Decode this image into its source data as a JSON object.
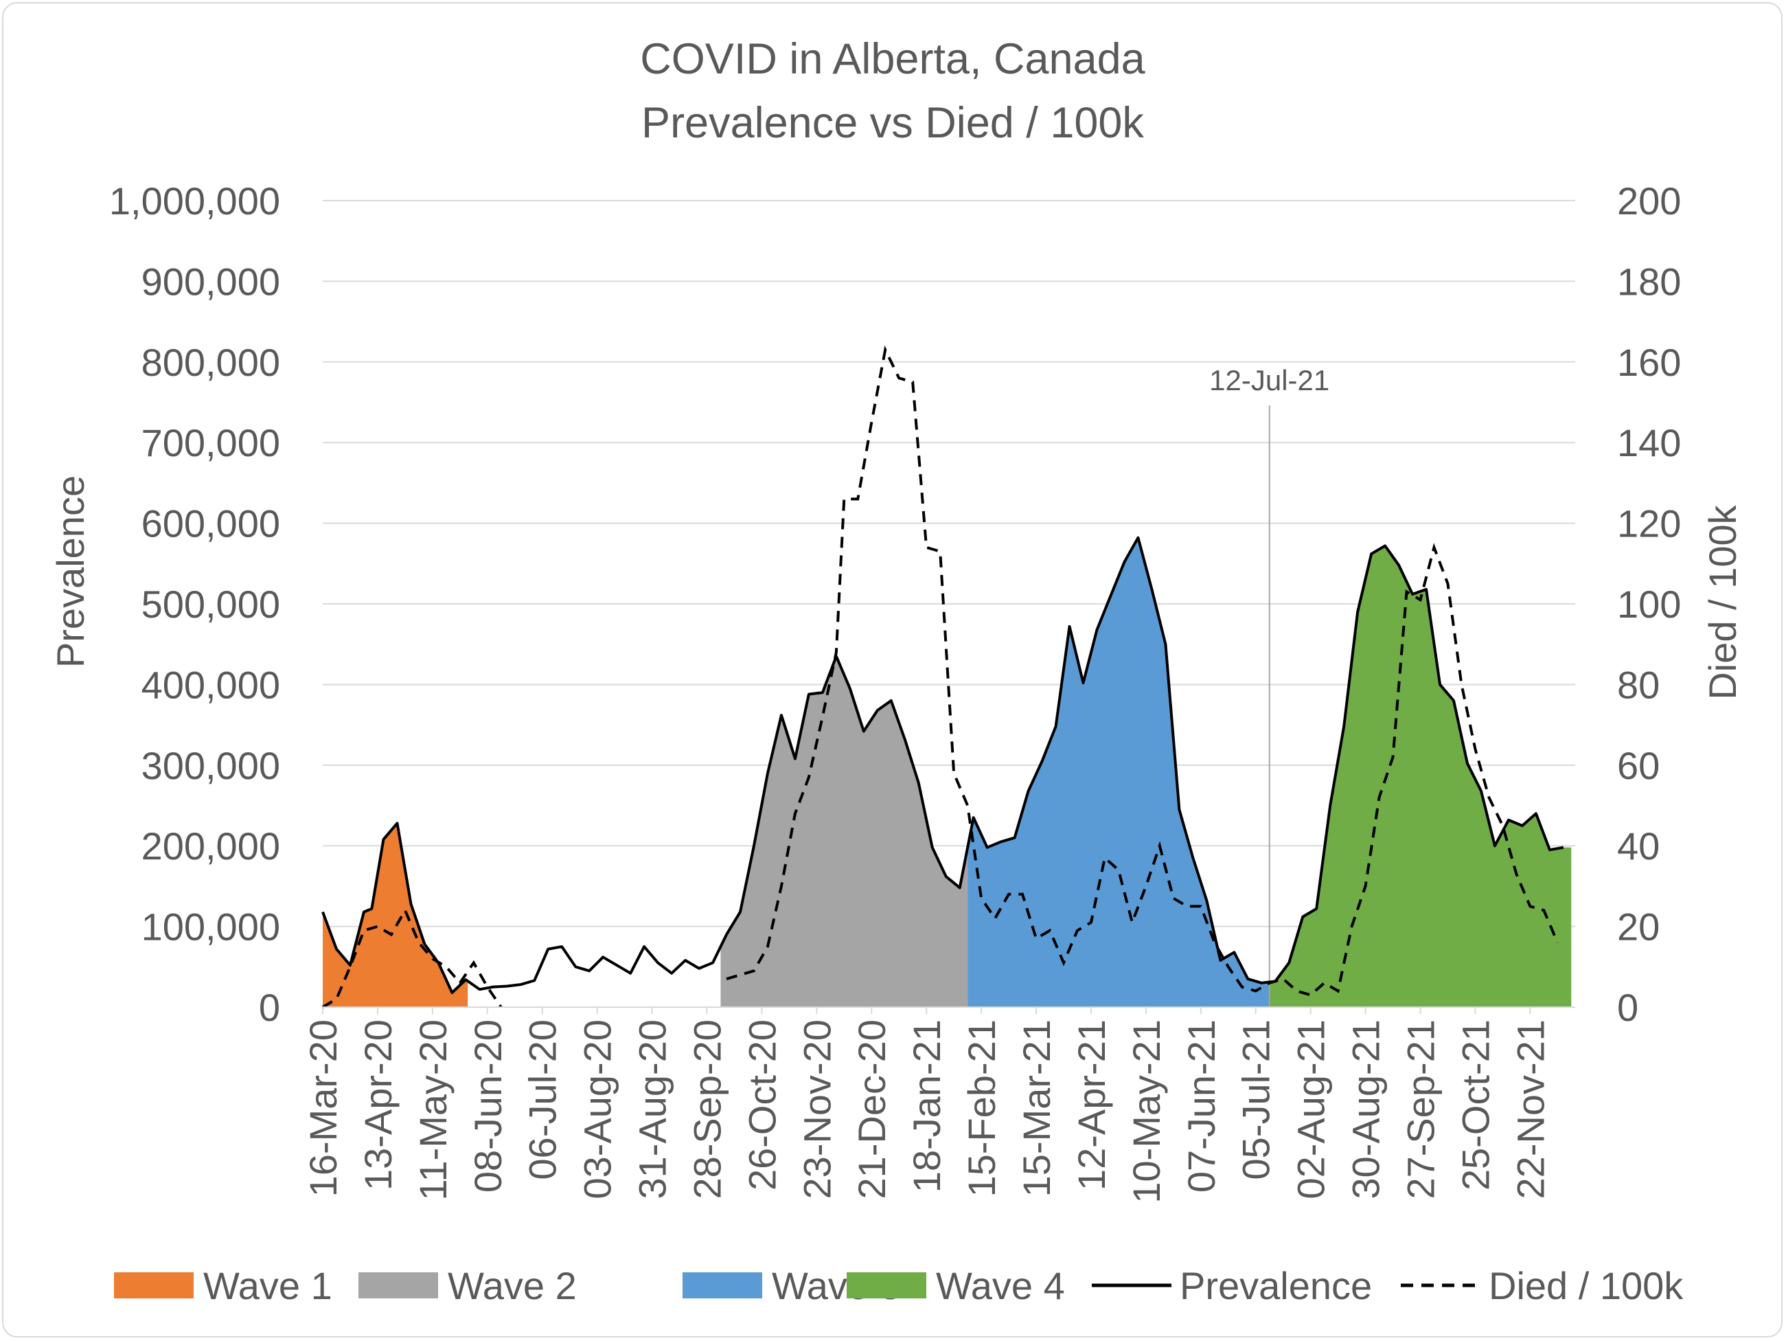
{
  "chart_data": {
    "type": "area",
    "title": [
      "COVID in Alberta, Canada",
      "Prevalence vs Died / 100k"
    ],
    "y_left_label": "Prevalence",
    "y_right_label": "Died / 100k",
    "y_left_lim": [
      0,
      1000000
    ],
    "y_right_lim": [
      0,
      200
    ],
    "y_left_ticks": [
      "0",
      "100,000",
      "200,000",
      "300,000",
      "400,000",
      "500,000",
      "600,000",
      "700,000",
      "800,000",
      "900,000",
      "1,000,000"
    ],
    "y_right_ticks": [
      "0",
      "20",
      "40",
      "60",
      "80",
      "100",
      "120",
      "140",
      "160",
      "180",
      "200"
    ],
    "x_tick_labels": [
      "16-Mar-20",
      "13-Apr-20",
      "11-May-20",
      "08-Jun-20",
      "06-Jul-20",
      "03-Aug-20",
      "31-Aug-20",
      "28-Sep-20",
      "26-Oct-20",
      "23-Nov-20",
      "21-Dec-20",
      "18-Jan-21",
      "15-Feb-21",
      "15-Mar-21",
      "12-Apr-21",
      "10-May-21",
      "07-Jun-21",
      "05-Jul-21",
      "02-Aug-21",
      "30-Aug-21",
      "27-Sep-21",
      "25-Oct-21",
      "22-Nov-21"
    ],
    "grid": true,
    "legend_position": "bottom",
    "annotation": {
      "label": "12-Jul-21",
      "x": "12-Jul-21"
    },
    "waves": [
      {
        "name": "Wave 1",
        "color": "#ED7D31",
        "start": "16-Mar-20",
        "end": "29-May-20"
      },
      {
        "name": "Wave 2",
        "color": "#A5A5A5",
        "start": "05-Oct-20",
        "end": "08-Feb-21"
      },
      {
        "name": "Wave 3",
        "color": "#5B9BD5",
        "start": "08-Feb-21",
        "end": "12-Jul-21"
      },
      {
        "name": "Wave 4",
        "color": "#70AD47",
        "start": "12-Jul-21",
        "end": "13-Dec-21"
      }
    ],
    "series": [
      {
        "name": "Prevalence",
        "axis": "left",
        "style": "solid",
        "points": [
          [
            "16-Mar-20",
            118000
          ],
          [
            "23-Mar-20",
            72000
          ],
          [
            "30-Mar-20",
            52000
          ],
          [
            "06-Apr-20",
            118000
          ],
          [
            "10-Apr-20",
            122000
          ],
          [
            "16-Apr-20",
            208000
          ],
          [
            "23-Apr-20",
            228000
          ],
          [
            "30-Apr-20",
            128000
          ],
          [
            "07-May-20",
            78000
          ],
          [
            "14-May-20",
            55000
          ],
          [
            "21-May-20",
            18000
          ],
          [
            "28-May-20",
            34000
          ],
          [
            "04-Jun-20",
            22000
          ],
          [
            "11-Jun-20",
            25000
          ],
          [
            "18-Jun-20",
            26000
          ],
          [
            "25-Jun-20",
            28000
          ],
          [
            "02-Jul-20",
            33000
          ],
          [
            "09-Jul-20",
            72000
          ],
          [
            "16-Jul-20",
            75000
          ],
          [
            "23-Jul-20",
            50000
          ],
          [
            "30-Jul-20",
            45000
          ],
          [
            "06-Aug-20",
            62000
          ],
          [
            "13-Aug-20",
            52000
          ],
          [
            "20-Aug-20",
            42000
          ],
          [
            "27-Aug-20",
            75000
          ],
          [
            "03-Sep-20",
            55000
          ],
          [
            "10-Sep-20",
            42000
          ],
          [
            "17-Sep-20",
            58000
          ],
          [
            "24-Sep-20",
            48000
          ],
          [
            "01-Oct-20",
            55000
          ],
          [
            "08-Oct-20",
            90000
          ],
          [
            "15-Oct-20",
            118000
          ],
          [
            "22-Oct-20",
            200000
          ],
          [
            "29-Oct-20",
            290000
          ],
          [
            "05-Nov-20",
            362000
          ],
          [
            "12-Nov-20",
            308000
          ],
          [
            "19-Nov-20",
            388000
          ],
          [
            "26-Nov-20",
            390000
          ],
          [
            "03-Dec-20",
            435000
          ],
          [
            "10-Dec-20",
            395000
          ],
          [
            "17-Dec-20",
            342000
          ],
          [
            "24-Dec-20",
            368000
          ],
          [
            "31-Dec-20",
            380000
          ],
          [
            "07-Jan-21",
            332000
          ],
          [
            "14-Jan-21",
            278000
          ],
          [
            "21-Jan-21",
            198000
          ],
          [
            "28-Jan-21",
            162000
          ],
          [
            "04-Feb-21",
            148000
          ],
          [
            "11-Feb-21",
            235000
          ],
          [
            "18-Feb-21",
            198000
          ],
          [
            "25-Feb-21",
            205000
          ],
          [
            "04-Mar-21",
            210000
          ],
          [
            "11-Mar-21",
            268000
          ],
          [
            "18-Mar-21",
            305000
          ],
          [
            "25-Mar-21",
            348000
          ],
          [
            "01-Apr-21",
            472000
          ],
          [
            "08-Apr-21",
            402000
          ],
          [
            "15-Apr-21",
            468000
          ],
          [
            "22-Apr-21",
            510000
          ],
          [
            "29-Apr-21",
            552000
          ],
          [
            "06-May-21",
            582000
          ],
          [
            "13-May-21",
            518000
          ],
          [
            "20-May-21",
            450000
          ],
          [
            "27-May-21",
            245000
          ],
          [
            "03-Jun-21",
            185000
          ],
          [
            "10-Jun-21",
            132000
          ],
          [
            "17-Jun-21",
            58000
          ],
          [
            "24-Jun-21",
            68000
          ],
          [
            "01-Jul-21",
            35000
          ],
          [
            "08-Jul-21",
            30000
          ],
          [
            "15-Jul-21",
            32000
          ],
          [
            "22-Jul-21",
            55000
          ],
          [
            "29-Jul-21",
            112000
          ],
          [
            "05-Aug-21",
            122000
          ],
          [
            "12-Aug-21",
            250000
          ],
          [
            "19-Aug-21",
            348000
          ],
          [
            "26-Aug-21",
            490000
          ],
          [
            "02-Sep-21",
            562000
          ],
          [
            "09-Sep-21",
            572000
          ],
          [
            "16-Sep-21",
            548000
          ],
          [
            "23-Sep-21",
            512000
          ],
          [
            "30-Sep-21",
            518000
          ],
          [
            "07-Oct-21",
            400000
          ],
          [
            "14-Oct-21",
            380000
          ],
          [
            "21-Oct-21",
            302000
          ],
          [
            "28-Oct-21",
            268000
          ],
          [
            "04-Nov-21",
            200000
          ],
          [
            "11-Nov-21",
            232000
          ],
          [
            "18-Nov-21",
            225000
          ],
          [
            "25-Nov-21",
            240000
          ],
          [
            "02-Dec-21",
            195000
          ],
          [
            "09-Dec-21",
            198000
          ]
        ]
      },
      {
        "name": "Died / 100k",
        "axis": "right",
        "style": "dashed",
        "points": [
          [
            "16-Mar-20",
            0
          ],
          [
            "23-Mar-20",
            2
          ],
          [
            "30-Mar-20",
            10
          ],
          [
            "06-Apr-20",
            19
          ],
          [
            "13-Apr-20",
            20
          ],
          [
            "20-Apr-20",
            18
          ],
          [
            "27-Apr-20",
            24
          ],
          [
            "04-May-20",
            16
          ],
          [
            "11-May-20",
            12
          ],
          [
            "18-May-20",
            10
          ],
          [
            "25-May-20",
            6
          ],
          [
            "01-Jun-20",
            11
          ],
          [
            "08-Jun-20",
            5
          ],
          [
            "15-Jun-20",
            0
          ],
          [
            "08-Oct-20",
            7
          ],
          [
            "22-Oct-20",
            9
          ],
          [
            "29-Oct-20",
            15
          ],
          [
            "05-Nov-20",
            30
          ],
          [
            "12-Nov-20",
            48
          ],
          [
            "19-Nov-20",
            57
          ],
          [
            "26-Nov-20",
            72
          ],
          [
            "03-Dec-20",
            88
          ],
          [
            "07-Dec-20",
            126
          ],
          [
            "14-Dec-20",
            126
          ],
          [
            "21-Dec-20",
            145
          ],
          [
            "28-Dec-20",
            163
          ],
          [
            "04-Jan-21",
            156
          ],
          [
            "11-Jan-21",
            155
          ],
          [
            "18-Jan-21",
            114
          ],
          [
            "25-Jan-21",
            113
          ],
          [
            "01-Feb-21",
            58
          ],
          [
            "08-Feb-21",
            50
          ],
          [
            "15-Feb-21",
            27
          ],
          [
            "22-Feb-21",
            22
          ],
          [
            "01-Mar-21",
            28
          ],
          [
            "08-Mar-21",
            28
          ],
          [
            "15-Mar-21",
            17
          ],
          [
            "22-Mar-21",
            19
          ],
          [
            "29-Mar-21",
            11
          ],
          [
            "05-Apr-21",
            19
          ],
          [
            "12-Apr-21",
            21
          ],
          [
            "19-Apr-21",
            37
          ],
          [
            "26-Apr-21",
            34
          ],
          [
            "03-May-21",
            21
          ],
          [
            "10-May-21",
            30
          ],
          [
            "17-May-21",
            40
          ],
          [
            "24-May-21",
            27
          ],
          [
            "31-May-21",
            25
          ],
          [
            "07-Jun-21",
            25
          ],
          [
            "14-Jun-21",
            16
          ],
          [
            "21-Jun-21",
            10
          ],
          [
            "28-Jun-21",
            5
          ],
          [
            "05-Jul-21",
            4
          ],
          [
            "12-Jul-21",
            6
          ],
          [
            "19-Jul-21",
            7
          ],
          [
            "26-Jul-21",
            4
          ],
          [
            "02-Aug-21",
            3
          ],
          [
            "09-Aug-21",
            6
          ],
          [
            "16-Aug-21",
            4
          ],
          [
            "23-Aug-21",
            20
          ],
          [
            "30-Aug-21",
            30
          ],
          [
            "06-Sep-21",
            52
          ],
          [
            "13-Sep-21",
            62
          ],
          [
            "20-Sep-21",
            103
          ],
          [
            "27-Sep-21",
            101
          ],
          [
            "04-Oct-21",
            114
          ],
          [
            "11-Oct-21",
            105
          ],
          [
            "18-Oct-21",
            80
          ],
          [
            "25-Oct-21",
            64
          ],
          [
            "01-Nov-21",
            52
          ],
          [
            "08-Nov-21",
            45
          ],
          [
            "15-Nov-21",
            33
          ],
          [
            "22-Nov-21",
            25
          ],
          [
            "29-Nov-21",
            24
          ],
          [
            "06-Dec-21",
            16
          ]
        ]
      }
    ]
  },
  "legend": [
    {
      "label": "Wave 1",
      "kind": "area",
      "color": "#ED7D31"
    },
    {
      "label": "Wave 2",
      "kind": "area",
      "color": "#A5A5A5"
    },
    {
      "label": "Wave 3",
      "kind": "area",
      "color": "#5B9BD5"
    },
    {
      "label": "Wave 4",
      "kind": "area",
      "color": "#70AD47"
    },
    {
      "label": "Prevalence",
      "kind": "line",
      "color": "#000000"
    },
    {
      "label": "Died / 100k",
      "kind": "dash",
      "color": "#000000"
    }
  ]
}
